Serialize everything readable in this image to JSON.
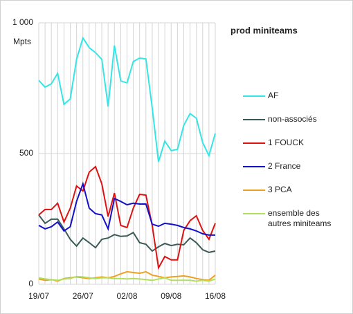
{
  "chart_data": {
    "type": "line",
    "title": "prod miniteams",
    "y_label": "Mpts",
    "categories": [
      "19/07",
      null,
      null,
      null,
      null,
      null,
      null,
      "26/07",
      null,
      null,
      null,
      null,
      null,
      null,
      "02/08",
      null,
      null,
      null,
      null,
      null,
      null,
      "09/08",
      null,
      null,
      null,
      null,
      null,
      null,
      "16/08"
    ],
    "ylim": [
      0,
      1000
    ],
    "yticks": [
      0,
      500,
      {
        "value": 1000,
        "label": "1 000"
      }
    ],
    "grid": true,
    "series": [
      {
        "name": "AF",
        "color": "#33e6e6",
        "values": [
          780,
          754,
          767,
          807,
          688,
          709,
          860,
          942,
          905,
          886,
          860,
          680,
          913,
          778,
          770,
          852,
          865,
          862,
          675,
          468,
          548,
          511,
          516,
          608,
          653,
          635,
          542,
          492,
          577
        ]
      },
      {
        "name": "non-associés",
        "color": "#3a5a55",
        "values": [
          265,
          233,
          249,
          249,
          212,
          172,
          146,
          177,
          159,
          140,
          172,
          177,
          190,
          183,
          185,
          198,
          159,
          153,
          127,
          143,
          156,
          148,
          153,
          151,
          177,
          159,
          132,
          122,
          127
        ]
      },
      {
        "name": "1 FOUCK",
        "color": "#e01010",
        "values": [
          265,
          286,
          286,
          310,
          238,
          291,
          376,
          357,
          429,
          450,
          384,
          259,
          349,
          225,
          217,
          291,
          344,
          341,
          225,
          63,
          106,
          93,
          93,
          206,
          243,
          262,
          206,
          172,
          233
        ]
      },
      {
        "name": "2 France",
        "color": "#1010c8",
        "values": [
          225,
          212,
          220,
          238,
          204,
          220,
          317,
          384,
          291,
          270,
          265,
          212,
          328,
          317,
          304,
          310,
          307,
          307,
          230,
          222,
          233,
          230,
          225,
          217,
          212,
          204,
          193,
          188,
          188
        ]
      },
      {
        "name": "3 PCA",
        "color": "#f0a020",
        "values": [
          20,
          15,
          18,
          12,
          22,
          25,
          28,
          25,
          22,
          25,
          28,
          25,
          30,
          40,
          48,
          45,
          42,
          48,
          35,
          30,
          25,
          28,
          30,
          32,
          28,
          22,
          18,
          15,
          35
        ]
      },
      {
        "name": "ensemble des autres miniteams",
        "color": "#b0e060",
        "values": [
          25,
          20,
          18,
          15,
          20,
          22,
          30,
          28,
          25,
          22,
          25,
          25,
          22,
          22,
          20,
          22,
          20,
          18,
          15,
          20,
          25,
          15,
          15,
          15,
          15,
          12,
          15,
          12,
          20
        ]
      }
    ]
  }
}
